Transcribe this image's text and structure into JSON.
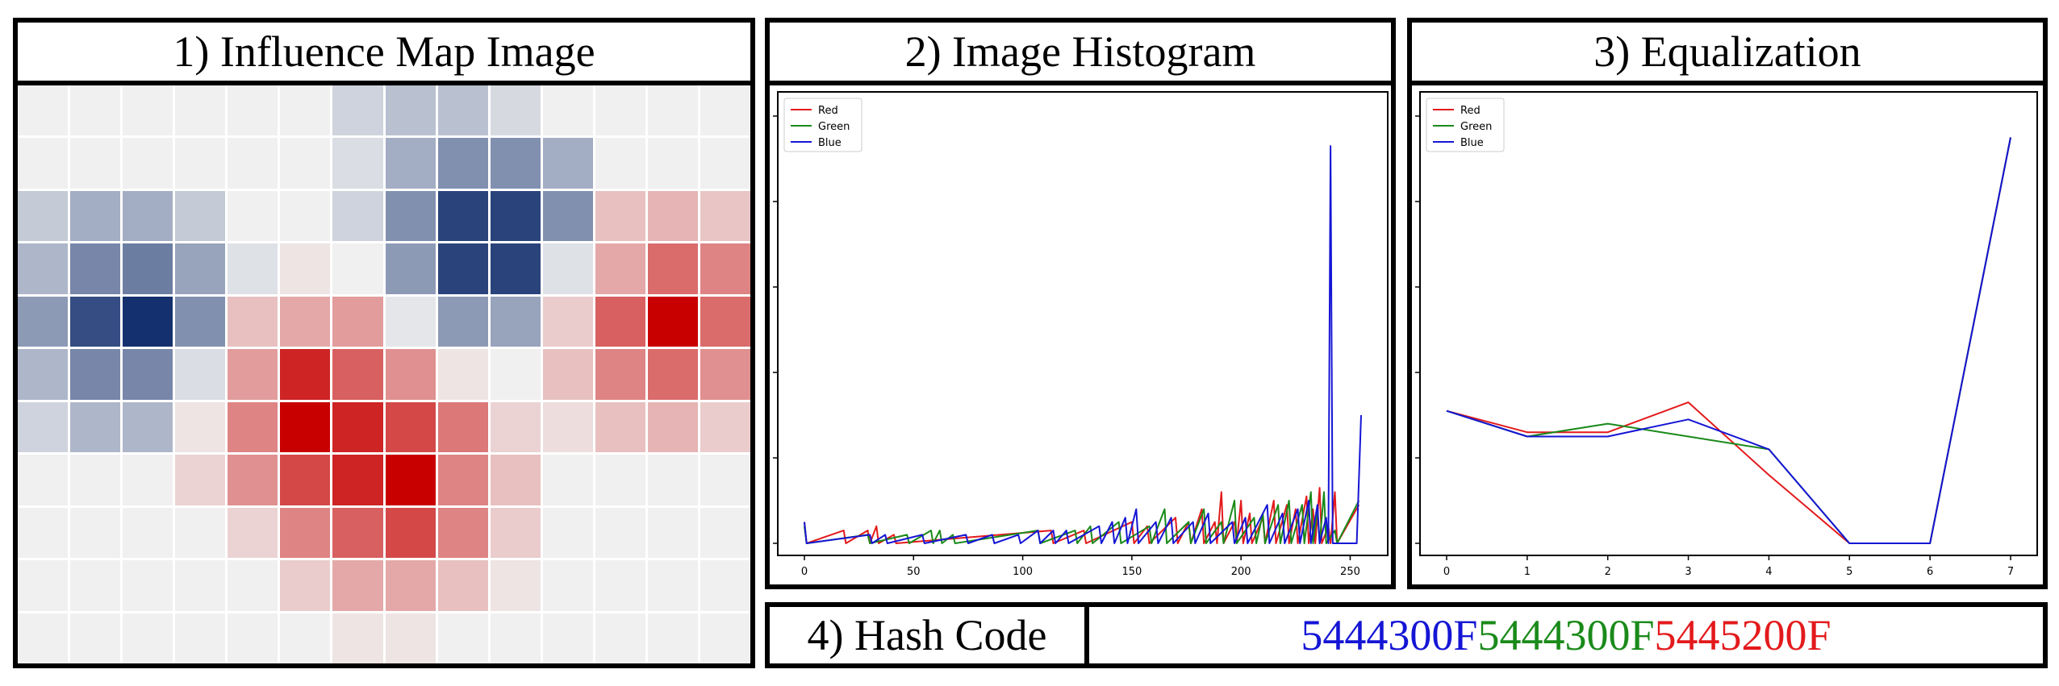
{
  "panels": {
    "influence_title": "1) Influence Map Image",
    "histogram_title": "2) Image Histogram",
    "equalization_title": "3) Equalization",
    "hash_label": "4) Hash Code"
  },
  "hash": {
    "blue_part": "5444300F",
    "green_part": "5444300F",
    "red_part": "5445200F"
  },
  "colors": {
    "red": "#e31a1c",
    "green": "#1a8a1a",
    "blue": "#1515d5"
  },
  "heatmap": {
    "rows": 11,
    "cols": 14,
    "values": [
      [
        0,
        0,
        0,
        0,
        0,
        0,
        -0.15,
        -0.25,
        -0.25,
        -0.12,
        0,
        0,
        0,
        0
      ],
      [
        0,
        0,
        0,
        0,
        0,
        0,
        -0.1,
        -0.35,
        -0.5,
        -0.5,
        -0.35,
        0,
        0,
        0
      ],
      [
        -0.2,
        -0.35,
        -0.35,
        -0.2,
        0,
        0,
        -0.15,
        -0.5,
        -0.9,
        -0.9,
        -0.5,
        0.2,
        0.25,
        0.18
      ],
      [
        -0.3,
        -0.55,
        -0.6,
        -0.4,
        -0.08,
        0.05,
        0,
        -0.45,
        -0.9,
        -0.9,
        -0.08,
        0.3,
        0.55,
        0.45
      ],
      [
        -0.45,
        -0.85,
        -1.0,
        -0.5,
        0.2,
        0.3,
        0.35,
        -0.05,
        -0.45,
        -0.4,
        0.15,
        0.6,
        1.0,
        0.55
      ],
      [
        -0.3,
        -0.55,
        -0.55,
        -0.1,
        0.35,
        0.85,
        0.6,
        0.4,
        0.05,
        0,
        0.2,
        0.45,
        0.55,
        0.4
      ],
      [
        -0.15,
        -0.3,
        -0.3,
        0.05,
        0.45,
        1.0,
        0.85,
        0.7,
        0.5,
        0.12,
        0.08,
        0.2,
        0.25,
        0.15
      ],
      [
        0,
        0,
        0,
        0.12,
        0.4,
        0.7,
        0.85,
        1.0,
        0.45,
        0.2,
        0,
        0,
        0,
        0
      ],
      [
        0,
        0,
        0,
        0,
        0.12,
        0.45,
        0.6,
        0.7,
        0.45,
        0.15,
        0,
        0,
        0,
        0
      ],
      [
        0,
        0,
        0,
        0,
        0,
        0.15,
        0.3,
        0.3,
        0.2,
        0.05,
        0,
        0,
        0,
        0
      ],
      [
        0,
        0,
        0,
        0,
        0,
        0,
        0.05,
        0.05,
        0,
        0,
        0,
        0,
        0,
        0
      ]
    ]
  },
  "chart_data": [
    {
      "type": "line",
      "xlim": [
        0,
        255
      ],
      "ylim": [
        0,
        1
      ],
      "x_ticks": [
        "0",
        "50",
        "100",
        "150",
        "200",
        "250"
      ],
      "legend": [
        "Red",
        "Green",
        "Blue"
      ],
      "legend_position": "top-left",
      "series": [
        {
          "name": "Red",
          "points": [
            [
              0,
              0.05
            ],
            [
              1,
              0
            ],
            [
              18,
              0.03
            ],
            [
              19,
              0
            ],
            [
              29,
              0.03
            ],
            [
              30,
              0
            ],
            [
              33,
              0.04
            ],
            [
              34,
              0
            ],
            [
              41,
              0.02
            ],
            [
              42,
              0
            ],
            [
              113,
              0.03
            ],
            [
              114,
              0
            ],
            [
              128,
              0.03
            ],
            [
              129,
              0
            ],
            [
              150,
              0.05
            ],
            [
              151,
              0
            ],
            [
              157,
              0.04
            ],
            [
              158,
              0
            ],
            [
              170,
              0.06
            ],
            [
              171,
              0
            ],
            [
              176,
              0.05
            ],
            [
              177,
              0
            ],
            [
              182,
              0.08
            ],
            [
              183,
              0
            ],
            [
              188,
              0.05
            ],
            [
              189,
              0
            ],
            [
              191,
              0.12
            ],
            [
              192,
              0
            ],
            [
              197,
              0.05
            ],
            [
              198,
              0
            ],
            [
              200,
              0.1
            ],
            [
              201,
              0
            ],
            [
              204,
              0.07
            ],
            [
              205,
              0
            ],
            [
              210,
              0.06
            ],
            [
              211,
              0
            ],
            [
              215,
              0.1
            ],
            [
              216,
              0
            ],
            [
              221,
              0.09
            ],
            [
              222,
              0
            ],
            [
              225,
              0.08
            ],
            [
              226,
              0
            ],
            [
              230,
              0.11
            ],
            [
              231,
              0
            ],
            [
              233,
              0.08
            ],
            [
              234,
              0
            ],
            [
              236,
              0.13
            ],
            [
              237,
              0
            ],
            [
              240,
              0.04
            ],
            [
              241,
              0
            ],
            [
              243,
              0.12
            ],
            [
              244,
              0
            ],
            [
              254,
              0.09
            ]
          ]
        },
        {
          "name": "Green",
          "points": [
            [
              0,
              0.04
            ],
            [
              1,
              0
            ],
            [
              29,
              0.02
            ],
            [
              30,
              0
            ],
            [
              47,
              0.02
            ],
            [
              48,
              0
            ],
            [
              58,
              0.03
            ],
            [
              59,
              0
            ],
            [
              62,
              0.03
            ],
            [
              63,
              0
            ],
            [
              68,
              0.02
            ],
            [
              69,
              0
            ],
            [
              107,
              0.03
            ],
            [
              108,
              0
            ],
            [
              124,
              0.03
            ],
            [
              125,
              0
            ],
            [
              131,
              0.04
            ],
            [
              132,
              0
            ],
            [
              144,
              0.05
            ],
            [
              145,
              0
            ],
            [
              158,
              0.04
            ],
            [
              159,
              0
            ],
            [
              165,
              0.08
            ],
            [
              166,
              0
            ],
            [
              176,
              0.05
            ],
            [
              177,
              0
            ],
            [
              183,
              0.08
            ],
            [
              184,
              0
            ],
            [
              191,
              0.05
            ],
            [
              192,
              0
            ],
            [
              197,
              0.1
            ],
            [
              198,
              0
            ],
            [
              206,
              0.06
            ],
            [
              207,
              0
            ],
            [
              210,
              0.07
            ],
            [
              211,
              0
            ],
            [
              217,
              0.09
            ],
            [
              218,
              0
            ],
            [
              222,
              0.1
            ],
            [
              223,
              0
            ],
            [
              228,
              0.09
            ],
            [
              229,
              0
            ],
            [
              232,
              0.12
            ],
            [
              233,
              0
            ],
            [
              235,
              0.08
            ],
            [
              236,
              0
            ],
            [
              238,
              0.12
            ],
            [
              239,
              0
            ],
            [
              243,
              0.03
            ],
            [
              244,
              0
            ],
            [
              254,
              0.1
            ]
          ]
        },
        {
          "name": "Blue",
          "points": [
            [
              0,
              0.05
            ],
            [
              1,
              0
            ],
            [
              30,
              0.02
            ],
            [
              31,
              0
            ],
            [
              37,
              0.02
            ],
            [
              38,
              0
            ],
            [
              54,
              0.02
            ],
            [
              55,
              0
            ],
            [
              74,
              0.02
            ],
            [
              75,
              0
            ],
            [
              86,
              0.02
            ],
            [
              87,
              0
            ],
            [
              98,
              0.02
            ],
            [
              99,
              0
            ],
            [
              107,
              0.03
            ],
            [
              108,
              0
            ],
            [
              114,
              0.03
            ],
            [
              115,
              0
            ],
            [
              120,
              0.03
            ],
            [
              121,
              0
            ],
            [
              135,
              0.04
            ],
            [
              136,
              0
            ],
            [
              141,
              0.05
            ],
            [
              142,
              0
            ],
            [
              147,
              0.06
            ],
            [
              148,
              0
            ],
            [
              152,
              0.08
            ],
            [
              153,
              0
            ],
            [
              161,
              0.05
            ],
            [
              162,
              0
            ],
            [
              168,
              0.06
            ],
            [
              169,
              0
            ],
            [
              178,
              0.05
            ],
            [
              179,
              0
            ],
            [
              185,
              0.07
            ],
            [
              186,
              0
            ],
            [
              196,
              0.05
            ],
            [
              197,
              0
            ],
            [
              202,
              0.06
            ],
            [
              203,
              0
            ],
            [
              212,
              0.09
            ],
            [
              213,
              0
            ],
            [
              219,
              0.07
            ],
            [
              220,
              0
            ],
            [
              226,
              0.08
            ],
            [
              227,
              0
            ],
            [
              231,
              0.1
            ],
            [
              232,
              0
            ],
            [
              235,
              0.09
            ],
            [
              236,
              0
            ],
            [
              239,
              0.06
            ],
            [
              240,
              0
            ],
            [
              241,
              0.93
            ],
            [
              242,
              0
            ],
            [
              253,
              0
            ],
            [
              255,
              0.3
            ]
          ]
        }
      ]
    },
    {
      "type": "line",
      "x": [
        0,
        1,
        2,
        3,
        4,
        5,
        6,
        7
      ],
      "xlim": [
        0,
        7
      ],
      "ylim": [
        0,
        1
      ],
      "x_ticks": [
        "0",
        "1",
        "2",
        "3",
        "4",
        "5",
        "6",
        "7"
      ],
      "legend": [
        "Red",
        "Green",
        "Blue"
      ],
      "legend_position": "top-left",
      "series": [
        {
          "name": "Red",
          "values": [
            0.31,
            0.26,
            0.26,
            0.33,
            0.16,
            0.0,
            0.0,
            0.95
          ]
        },
        {
          "name": "Green",
          "values": [
            0.31,
            0.25,
            0.28,
            0.25,
            0.22,
            0.0,
            0.0,
            0.95
          ]
        },
        {
          "name": "Blue",
          "values": [
            0.31,
            0.25,
            0.25,
            0.29,
            0.22,
            0.0,
            0.0,
            0.95
          ]
        }
      ]
    }
  ]
}
